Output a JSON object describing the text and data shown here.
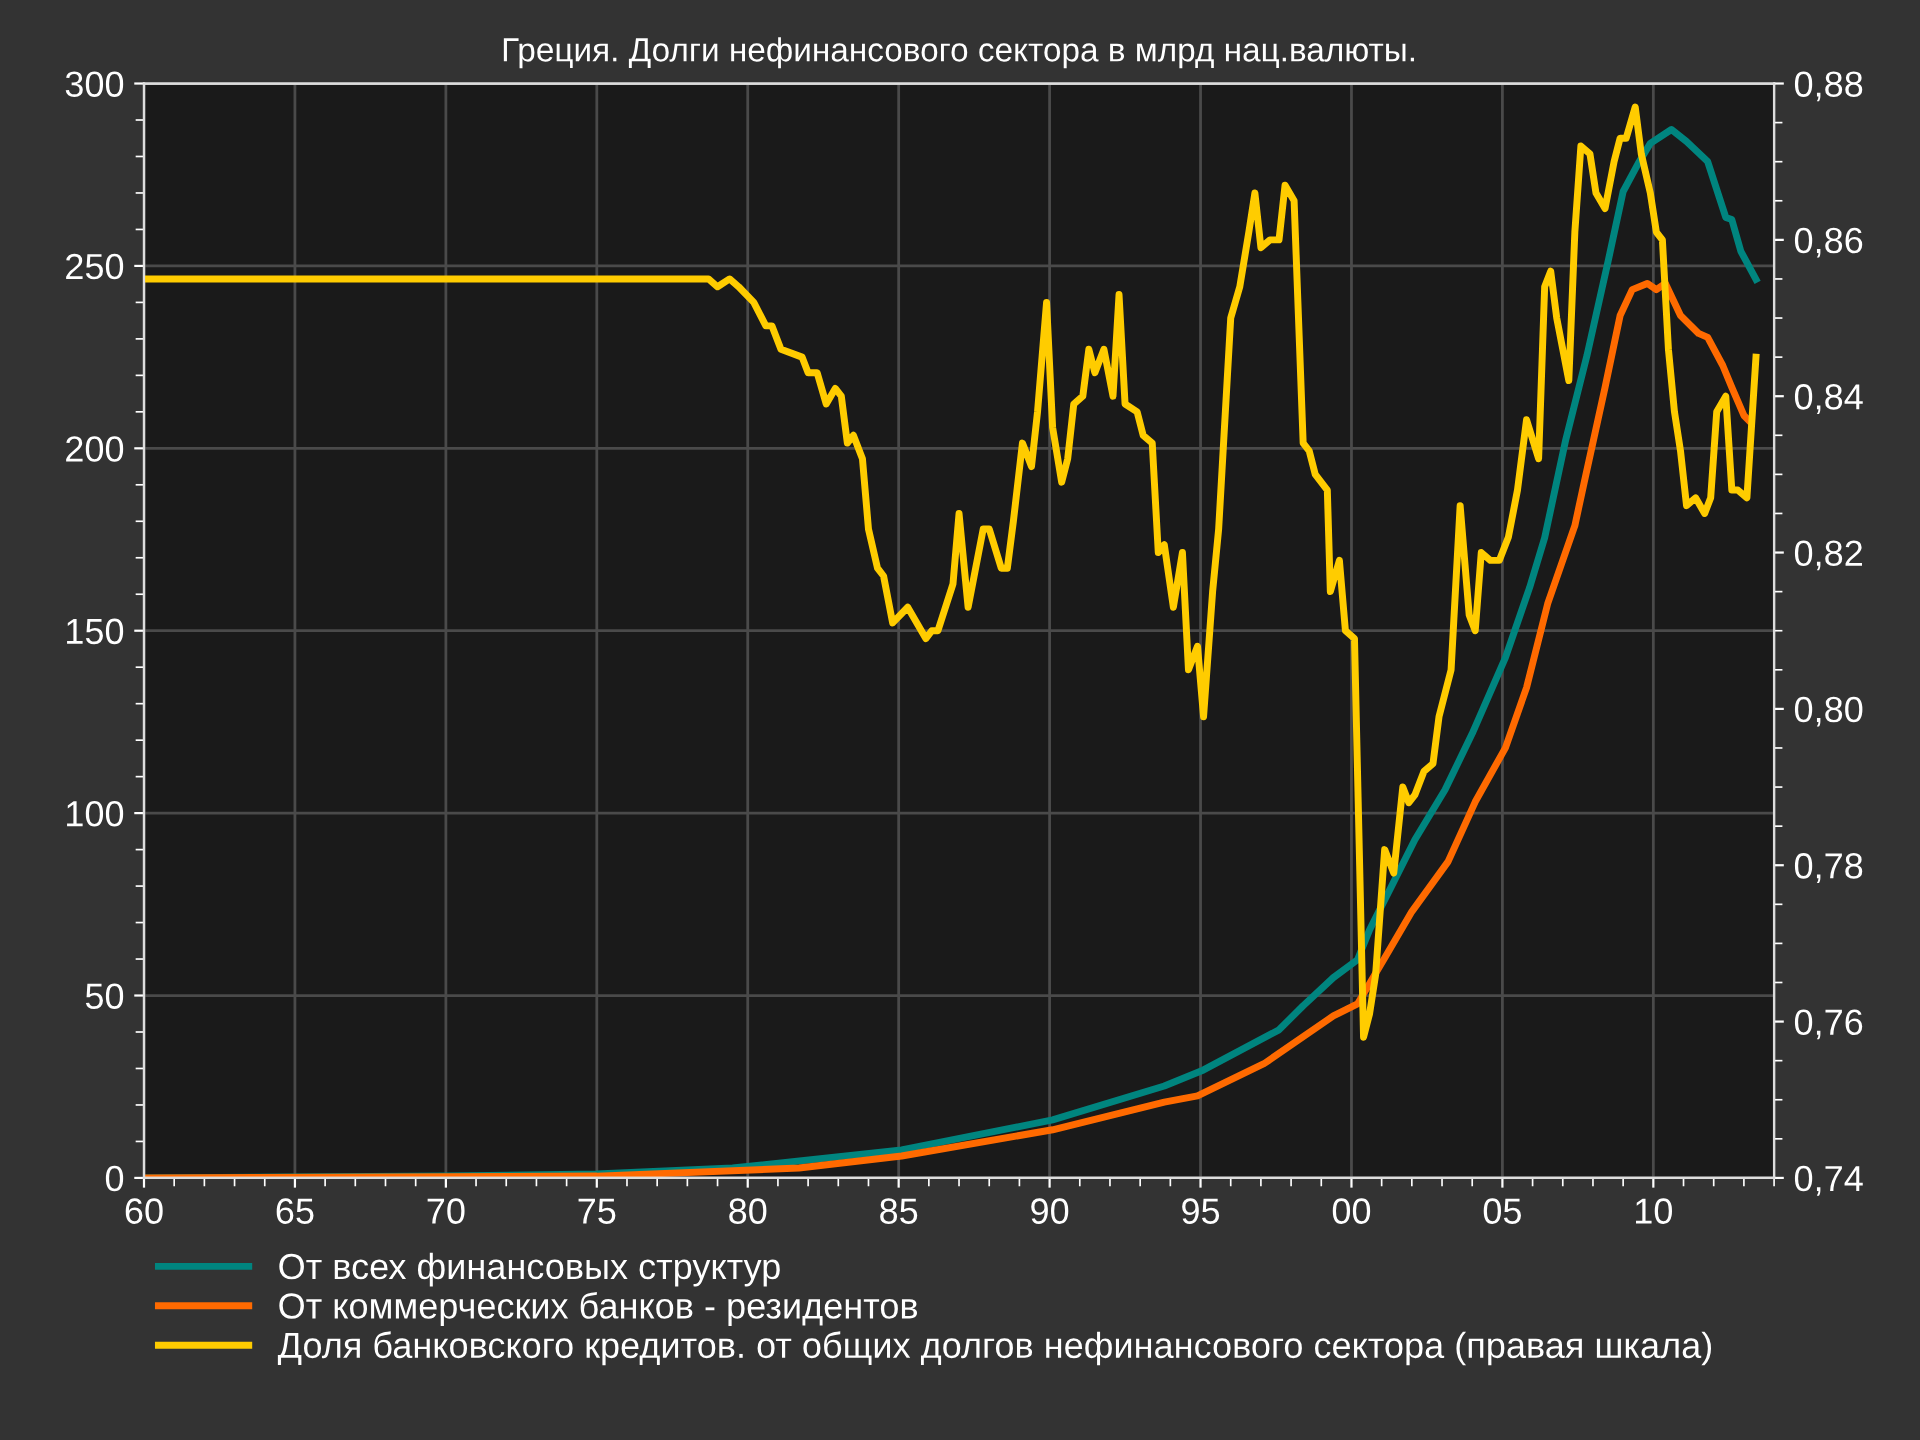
{
  "chart_data": {
    "type": "line",
    "title": "Греция. Долги нефинансового сектора в млрд нац.валюты.",
    "xlim": [
      1960,
      2014
    ],
    "xticks": [
      {
        "value": 1960,
        "label": "60"
      },
      {
        "value": 1965,
        "label": "65"
      },
      {
        "value": 1970,
        "label": "70"
      },
      {
        "value": 1975,
        "label": "75"
      },
      {
        "value": 1980,
        "label": "80"
      },
      {
        "value": 1985,
        "label": "85"
      },
      {
        "value": 1990,
        "label": "90"
      },
      {
        "value": 1995,
        "label": "95"
      },
      {
        "value": 2000,
        "label": "00"
      },
      {
        "value": 2005,
        "label": "05"
      },
      {
        "value": 2010,
        "label": "10"
      }
    ],
    "ylim": [
      0,
      300
    ],
    "yticks": [
      0,
      50,
      100,
      150,
      200,
      250,
      300
    ],
    "y2lim": [
      0.74,
      0.88
    ],
    "y2ticks": [
      {
        "value": 0.74,
        "label": "0,74"
      },
      {
        "value": 0.76,
        "label": "0,76"
      },
      {
        "value": 0.78,
        "label": "0,78"
      },
      {
        "value": 0.8,
        "label": "0,80"
      },
      {
        "value": 0.82,
        "label": "0,82"
      },
      {
        "value": 0.84,
        "label": "0,84"
      },
      {
        "value": 0.86,
        "label": "0,86"
      },
      {
        "value": 0.88,
        "label": "0,88"
      }
    ],
    "grid": true,
    "legend": "bottom",
    "series": [
      {
        "name": "От всех финансовых структур",
        "color": "#00857f",
        "x": [
          1960.0,
          1970.05,
          1975.0,
          1979.5,
          1985.1,
          1990.1,
          1993.8,
          1995.1,
          1997.6,
          1998.4,
          1999.4,
          2000.2,
          2000.6,
          2001.3,
          2002.1,
          2003.1,
          2004.0,
          2005.1,
          2005.9,
          2006.4,
          2007.1,
          2007.8,
          2008.5,
          2009.0,
          2009.5,
          2009.9,
          2010.6,
          2011.1,
          2011.8,
          2012.4,
          2012.6,
          2012.9,
          2013.4
        ],
        "values": [
          0,
          0.5,
          1.1,
          2.7,
          7.7,
          15.9,
          25.2,
          29.6,
          40.6,
          47.2,
          54.9,
          59.8,
          68.0,
          79.5,
          92.7,
          106.4,
          121.8,
          142.6,
          161.8,
          175.5,
          202.4,
          225.4,
          251.2,
          270.4,
          278.1,
          283.6,
          287.4,
          284.1,
          278.6,
          263.3,
          262.7,
          254.0,
          246.3
        ]
      },
      {
        "name": "От коммерческих банков - резидентов",
        "color": "#ff6a00",
        "x": [
          1960.0,
          1975.0,
          1981.7,
          1985.1,
          1990.1,
          1993.8,
          1994.9,
          1997.1,
          1999.4,
          2000.2,
          2001.1,
          2002.0,
          2003.2,
          2004.1,
          2005.1,
          2005.8,
          2006.5,
          2007.4,
          2007.7,
          2008.4,
          2008.9,
          2009.3,
          2009.8,
          2010.1,
          2010.4,
          2010.9,
          2011.5,
          2011.8,
          2012.3,
          2012.6,
          2013.0,
          2013.2
        ],
        "values": [
          0,
          0.5,
          2.7,
          6.0,
          13.2,
          20.8,
          22.5,
          31.3,
          44.4,
          47.7,
          60.3,
          73.0,
          86.7,
          103.1,
          117.9,
          134.4,
          157.4,
          178.8,
          190.3,
          216.7,
          236.4,
          243.5,
          245.2,
          243.5,
          245.2,
          236.4,
          231.5,
          230.4,
          222.7,
          216.7,
          209.0,
          207.3
        ]
      },
      {
        "name": "Доля банковского кредитов. от общих долгов нефинансового сектора (правая шкала)",
        "color": "#ffcc00",
        "axis": "y2",
        "x": [
          1960.0,
          1978.7,
          1979.0,
          1979.4,
          1979.7,
          1980.2,
          1980.6,
          1980.8,
          1981.1,
          1981.8,
          1982.0,
          1982.3,
          1982.6,
          1982.9,
          1983.1,
          1983.3,
          1983.5,
          1983.8,
          1984.0,
          1984.3,
          1984.5,
          1984.8,
          1985.3,
          1985.9,
          1986.1,
          1986.3,
          1986.8,
          1987.0,
          1987.3,
          1987.6,
          1987.8,
          1988.0,
          1988.4,
          1988.6,
          1988.8,
          1989.1,
          1989.4,
          1989.6,
          1989.9,
          1990.1,
          1990.4,
          1990.6,
          1990.8,
          1991.1,
          1991.3,
          1991.5,
          1991.8,
          1992.1,
          1992.3,
          1992.5,
          1992.9,
          1993.1,
          1993.4,
          1993.6,
          1993.8,
          1994.1,
          1994.4,
          1994.6,
          1994.9,
          1995.1,
          1995.4,
          1995.6,
          1996.0,
          1996.3,
          1996.6,
          1996.8,
          1997.0,
          1997.3,
          1997.6,
          1997.8,
          1998.1,
          1998.4,
          1998.6,
          1998.8,
          1999.2,
          1999.3,
          1999.6,
          1999.8,
          2000.1,
          2000.4,
          2000.6,
          2000.8,
          2001.1,
          2001.4,
          2001.7,
          2001.9,
          2002.1,
          2002.4,
          2002.7,
          2002.9,
          2003.3,
          2003.6,
          2003.9,
          2004.1,
          2004.3,
          2004.6,
          2004.9,
          2005.2,
          2005.5,
          2005.8,
          2006.2,
          2006.4,
          2006.6,
          2006.8,
          2007.2,
          2007.4,
          2007.6,
          2007.9,
          2008.1,
          2008.4,
          2008.7,
          2008.9,
          2009.1,
          2009.4,
          2009.6,
          2009.9,
          2010.1,
          2010.3,
          2010.5,
          2010.7,
          2010.9,
          2011.1,
          2011.4,
          2011.7,
          2011.9,
          2012.1,
          2012.4,
          2012.6,
          2012.8,
          2013.1,
          2013.4
        ],
        "values": [
          0.855,
          0.855,
          0.854,
          0.855,
          0.854,
          0.852,
          0.849,
          0.849,
          0.846,
          0.845,
          0.843,
          0.843,
          0.839,
          0.841,
          0.84,
          0.834,
          0.835,
          0.832,
          0.823,
          0.818,
          0.817,
          0.811,
          0.813,
          0.809,
          0.81,
          0.81,
          0.816,
          0.825,
          0.813,
          0.819,
          0.823,
          0.823,
          0.818,
          0.818,
          0.824,
          0.834,
          0.831,
          0.838,
          0.852,
          0.836,
          0.829,
          0.832,
          0.839,
          0.84,
          0.846,
          0.843,
          0.846,
          0.84,
          0.853,
          0.839,
          0.838,
          0.835,
          0.834,
          0.82,
          0.821,
          0.813,
          0.82,
          0.805,
          0.808,
          0.799,
          0.815,
          0.823,
          0.85,
          0.854,
          0.861,
          0.866,
          0.859,
          0.86,
          0.86,
          0.867,
          0.865,
          0.834,
          0.833,
          0.83,
          0.828,
          0.815,
          0.819,
          0.81,
          0.809,
          0.758,
          0.761,
          0.766,
          0.782,
          0.779,
          0.79,
          0.788,
          0.789,
          0.792,
          0.793,
          0.799,
          0.805,
          0.826,
          0.812,
          0.81,
          0.82,
          0.819,
          0.819,
          0.822,
          0.828,
          0.837,
          0.832,
          0.854,
          0.856,
          0.85,
          0.842,
          0.861,
          0.872,
          0.871,
          0.866,
          0.864,
          0.87,
          0.873,
          0.873,
          0.877,
          0.871,
          0.866,
          0.861,
          0.86,
          0.846,
          0.838,
          0.833,
          0.826,
          0.827,
          0.825,
          0.827,
          0.838,
          0.84,
          0.828,
          0.828,
          0.827,
          0.845
        ]
      }
    ]
  }
}
